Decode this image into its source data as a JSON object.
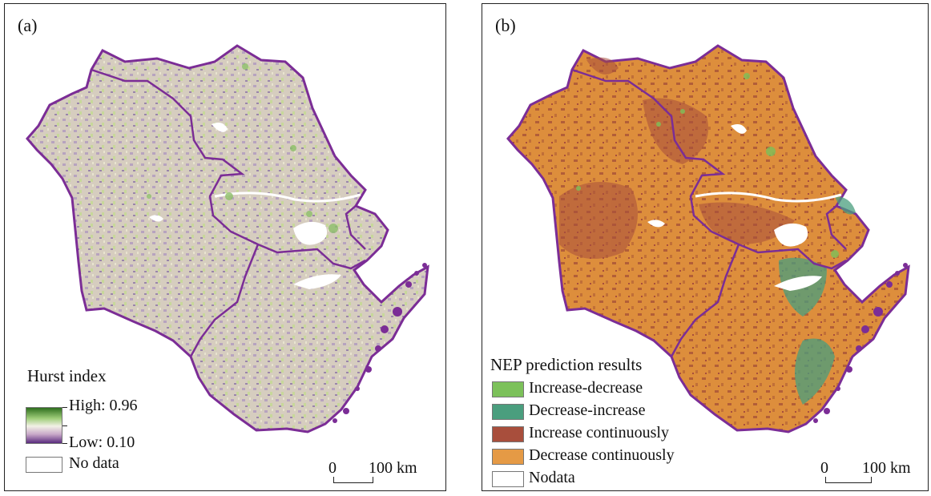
{
  "panels": [
    {
      "label": "(a)",
      "legend": {
        "title": "Hurst index",
        "high_label": "High: 0.96",
        "low_label": "Low: 0.10",
        "nodata_label": "No data",
        "ramp_colors": [
          "#2e6e1e",
          "#9fcd7a",
          "#f2f1e6",
          "#c8a8c8",
          "#5a2b7e"
        ]
      },
      "scale": {
        "zero": "0",
        "distance": "100 km"
      },
      "base_color": "#cfc5b8",
      "boundary_color": "#7b2d96"
    },
    {
      "label": "(b)",
      "legend": {
        "title": "NEP prediction results",
        "classes": [
          {
            "label": "Increase-decrease",
            "color": "#7cc15a"
          },
          {
            "label": "Decrease-increase",
            "color": "#4a9e7e"
          },
          {
            "label": "Increase continuously",
            "color": "#a84e3c"
          },
          {
            "label": "Decrease continuously",
            "color": "#e59a45"
          },
          {
            "label": "Nodata",
            "color": "#ffffff"
          }
        ]
      },
      "scale": {
        "zero": "0",
        "distance": "100 km"
      },
      "base_color": "#d8893a",
      "boundary_color": "#7b2d96"
    }
  ]
}
